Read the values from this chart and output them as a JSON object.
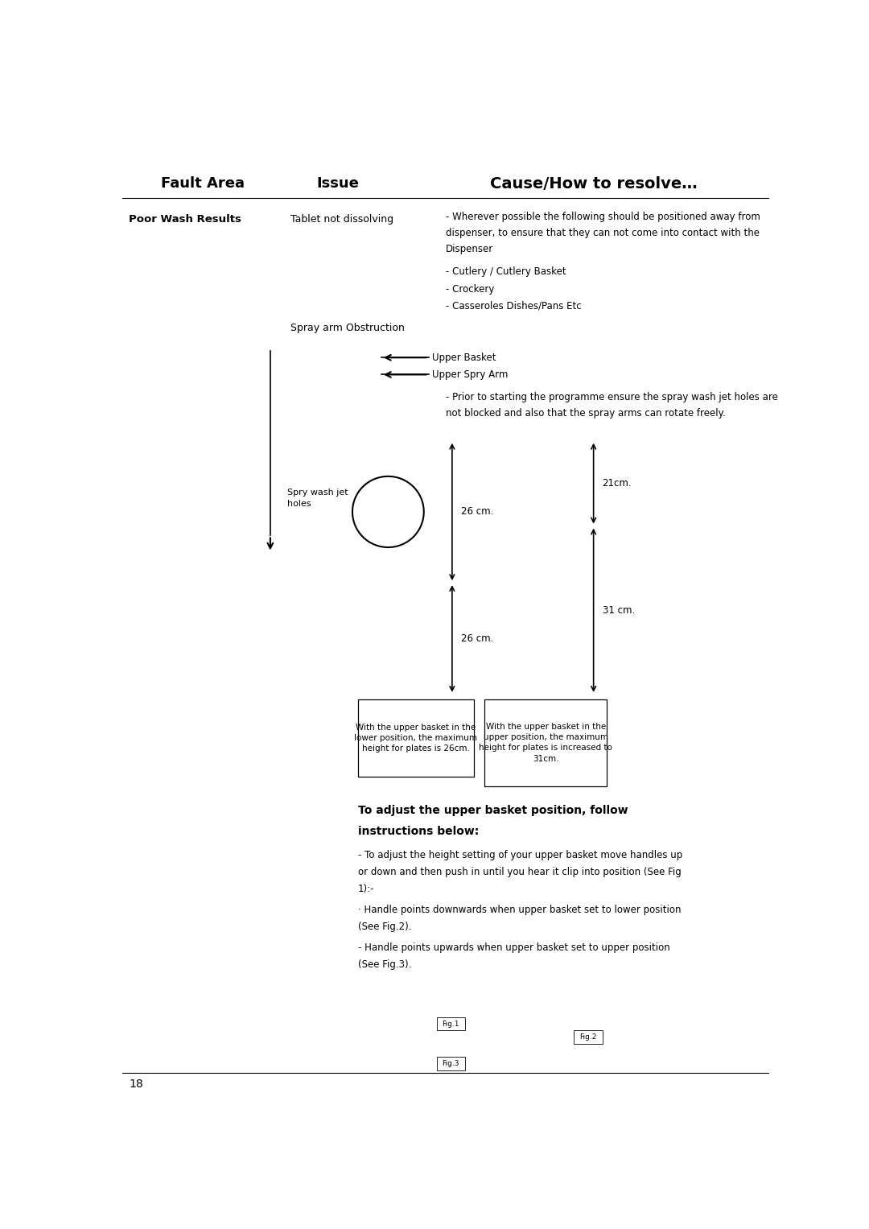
{
  "bg_color": "#ffffff",
  "page_width": 10.8,
  "page_height": 15.27,
  "header_fault": "Fault Area",
  "header_issue": "Issue",
  "header_cause": "Cause/How to resolve…",
  "fault_label": "Poor Wash Results",
  "issue1": "Tablet not dissolving",
  "cause1_line1": "- Wherever possible the following should be positioned away from",
  "cause1_line2": "dispenser, to ensure that they can not come into contact with the",
  "cause1_line3": "Dispenser",
  "bullet1": "- Cutlery / Cutlery Basket",
  "bullet2": "- Crockery",
  "bullet3": "- Casseroles Dishes/Pans Etc",
  "issue2": "Spray arm Obstruction",
  "arrow1_label": "Upper Basket",
  "arrow2_label": "Upper Spry Arm",
  "spray_line1": "- Prior to starting the programme ensure the spray wash jet holes are",
  "spray_line2": "not blocked and also that the spray arms can rotate freely.",
  "spray_jet_label": "Spry wash jet\nholes",
  "dim1_top": "26 cm.",
  "dim1_bot": "26 cm.",
  "dim2_top": "21cm.",
  "dim2_bot": "31 cm.",
  "box1_text": "With the upper basket in the\nlower position, the maximum\nheight for plates is 26cm.",
  "box2_text": "With the upper basket in the\nupper position, the maximum\nheight for plates is increased to\n31cm.",
  "bold_heading1": "To adjust the upper basket position, follow",
  "bold_heading2": "instructions below:",
  "para1_l1": "- To adjust the height setting of your upper basket move handles up",
  "para1_l2": "or down and then push in until you hear it clip into position (See Fig",
  "para1_l3": "1):-",
  "para2_l1": "· Handle points downwards when upper basket set to lower position",
  "para2_l2": "(See Fig.2).",
  "para3_l1": "- Handle points upwards when upper basket set to upper position",
  "para3_l2": "(See Fig.3).",
  "fig1_label": "Fig.1",
  "fig2_label": "Fig.2",
  "fig3_label": "Fig.3",
  "page_num": "18"
}
